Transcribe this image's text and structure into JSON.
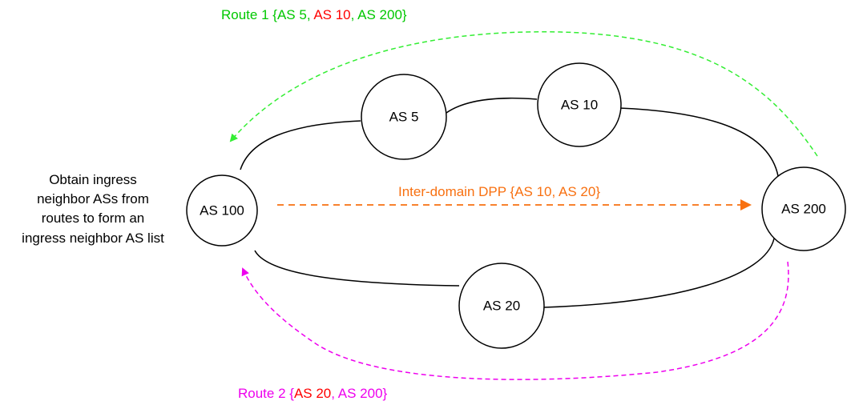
{
  "colors": {
    "route1": "#00c800",
    "route1_arrow": "#33ee33",
    "route2": "#ee00ee",
    "highlight": "#ff0000",
    "dpp": "#f87010",
    "node_stroke": "#000000"
  },
  "nodes": {
    "as100": "AS 100",
    "as5": "AS 5",
    "as10": "AS 10",
    "as200": "AS 200",
    "as20": "AS 20"
  },
  "caption": {
    "line1": "Obtain ingress",
    "line2": "neighbor ASs from",
    "line3": "routes to form an",
    "line4": "ingress neighbor AS list"
  },
  "route1": {
    "prefix": "Route 1 {",
    "as5": "AS 5",
    "sep1": ", ",
    "as10": "AS 10",
    "sep2": ", ",
    "as200": "AS 200",
    "suffix": "}"
  },
  "route2": {
    "prefix": "Route 2 {",
    "as20": "AS 20",
    "sep1": ", ",
    "as200": "AS 200",
    "suffix": "}"
  },
  "dpp": {
    "label": "Inter-domain DPP {AS 10, AS 20}"
  }
}
